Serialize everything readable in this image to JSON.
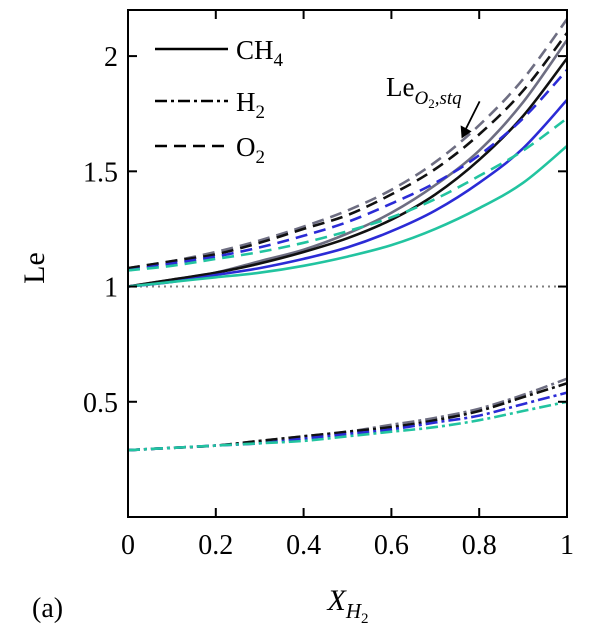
{
  "panel_label": "(a)",
  "chart_data": {
    "type": "line",
    "title": "",
    "xlabel": {
      "main": "X",
      "sub": "H",
      "subsub": "2"
    },
    "ylabel": "Le",
    "xlim": [
      0,
      1
    ],
    "ylim": [
      0,
      2.2
    ],
    "xticks": [
      0,
      0.2,
      0.4,
      0.6,
      0.8,
      1
    ],
    "xtick_labels": [
      "0",
      "0.2",
      "0.4",
      "0.6",
      "0.8",
      "1"
    ],
    "yticks": [
      0.5,
      1,
      1.5,
      2
    ],
    "ytick_labels": [
      "0.5",
      "1",
      "1.5",
      "2"
    ],
    "grid": false,
    "reference_line": {
      "y": 1,
      "style": "dotted",
      "color": "#7f7f7f"
    },
    "legend": {
      "placement": "top-left",
      "entries": [
        {
          "main": "CH",
          "sub": "4",
          "style": "solid"
        },
        {
          "main": "H",
          "sub": "2",
          "style": "dashdot"
        },
        {
          "main": "O",
          "sub": "2",
          "style": "dashed"
        }
      ]
    },
    "annotation": {
      "main": "Le",
      "sub": "O",
      "subsub": "2",
      "tail": ",stq",
      "points_to": {
        "x": 0.76,
        "y": 1.63
      }
    },
    "colors": {
      "gray": "#6e6e82",
      "black": "#111111",
      "blue": "#2b2bd6",
      "teal": "#22c4a0"
    },
    "x": [
      0,
      0.1,
      0.2,
      0.3,
      0.4,
      0.5,
      0.6,
      0.7,
      0.8,
      0.9,
      1.0
    ],
    "series": [
      {
        "species": "CH4",
        "style": "solid",
        "color": "gray",
        "values": [
          1.0,
          1.03,
          1.06,
          1.11,
          1.16,
          1.23,
          1.32,
          1.44,
          1.59,
          1.8,
          2.07
        ]
      },
      {
        "species": "CH4",
        "style": "solid",
        "color": "black",
        "values": [
          1.0,
          1.03,
          1.06,
          1.1,
          1.15,
          1.21,
          1.29,
          1.4,
          1.55,
          1.74,
          1.99
        ]
      },
      {
        "species": "CH4",
        "style": "solid",
        "color": "blue",
        "values": [
          1.0,
          1.02,
          1.05,
          1.08,
          1.12,
          1.17,
          1.24,
          1.33,
          1.45,
          1.6,
          1.81
        ]
      },
      {
        "species": "CH4",
        "style": "solid",
        "color": "teal",
        "values": [
          1.0,
          1.02,
          1.04,
          1.06,
          1.09,
          1.13,
          1.18,
          1.25,
          1.34,
          1.45,
          1.61
        ]
      },
      {
        "species": "O2",
        "style": "dashed",
        "color": "gray",
        "values": [
          1.08,
          1.11,
          1.15,
          1.2,
          1.26,
          1.33,
          1.42,
          1.54,
          1.7,
          1.9,
          2.16
        ]
      },
      {
        "species": "O2",
        "style": "dashed",
        "color": "black",
        "values": [
          1.08,
          1.11,
          1.14,
          1.19,
          1.25,
          1.31,
          1.4,
          1.51,
          1.66,
          1.85,
          2.1
        ]
      },
      {
        "species": "O2",
        "style": "dashed",
        "color": "blue",
        "values": [
          1.07,
          1.1,
          1.13,
          1.17,
          1.22,
          1.28,
          1.36,
          1.45,
          1.57,
          1.73,
          1.94
        ]
      },
      {
        "species": "O2",
        "style": "dashed",
        "color": "teal",
        "values": [
          1.07,
          1.09,
          1.12,
          1.15,
          1.19,
          1.24,
          1.3,
          1.38,
          1.48,
          1.59,
          1.73
        ]
      },
      {
        "species": "H2",
        "style": "dashdot",
        "color": "gray",
        "values": [
          0.29,
          0.3,
          0.31,
          0.33,
          0.35,
          0.37,
          0.4,
          0.43,
          0.47,
          0.53,
          0.6
        ]
      },
      {
        "species": "H2",
        "style": "dashdot",
        "color": "black",
        "values": [
          0.29,
          0.3,
          0.31,
          0.33,
          0.35,
          0.37,
          0.39,
          0.42,
          0.46,
          0.52,
          0.58
        ]
      },
      {
        "species": "H2",
        "style": "dashdot",
        "color": "blue",
        "values": [
          0.29,
          0.3,
          0.31,
          0.32,
          0.34,
          0.36,
          0.38,
          0.41,
          0.44,
          0.49,
          0.54
        ]
      },
      {
        "species": "H2",
        "style": "dashdot",
        "color": "teal",
        "values": [
          0.29,
          0.3,
          0.31,
          0.32,
          0.33,
          0.35,
          0.37,
          0.39,
          0.42,
          0.46,
          0.5
        ]
      }
    ]
  }
}
